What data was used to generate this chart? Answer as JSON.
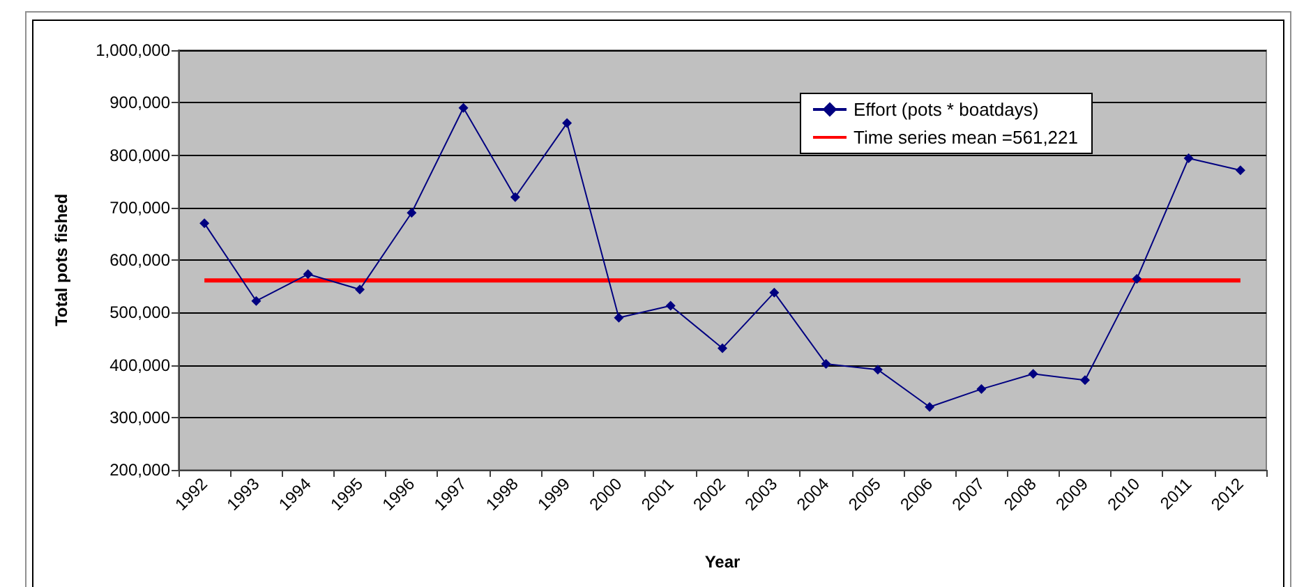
{
  "chart_data": {
    "type": "line",
    "xlabel": "Year",
    "ylabel": "Total pots fished",
    "categories": [
      "1992",
      "1993",
      "1994",
      "1995",
      "1996",
      "1997",
      "1998",
      "1999",
      "2000",
      "2001",
      "2002",
      "2003",
      "2004",
      "2005",
      "2006",
      "2007",
      "2008",
      "2009",
      "2010",
      "2011",
      "2012"
    ],
    "series": [
      {
        "name": "Effort (pots * boatdays)",
        "color": "#000080",
        "values": [
          670000,
          522000,
          573000,
          544000,
          690000,
          890000,
          720000,
          861000,
          490000,
          513000,
          432000,
          538000,
          402000,
          391000,
          320000,
          354000,
          383000,
          371000,
          564000,
          794000,
          771000
        ]
      },
      {
        "name": "Time series mean =561,221",
        "color": "#ff0000",
        "marker": "none",
        "values": [
          561221,
          561221,
          561221,
          561221,
          561221,
          561221,
          561221,
          561221,
          561221,
          561221,
          561221,
          561221,
          561221,
          561221,
          561221,
          561221,
          561221,
          561221,
          561221,
          561221,
          561221
        ]
      }
    ],
    "ylim": [
      200000,
      1000000
    ],
    "yticks": [
      {
        "value": 200000,
        "label": "200,000"
      },
      {
        "value": 300000,
        "label": "300,000"
      },
      {
        "value": 400000,
        "label": "400,000"
      },
      {
        "value": 500000,
        "label": "500,000"
      },
      {
        "value": 600000,
        "label": "600,000"
      },
      {
        "value": 700000,
        "label": "700,000"
      },
      {
        "value": 800000,
        "label": "800,000"
      },
      {
        "value": 900000,
        "label": "900,000"
      },
      {
        "value": 1000000,
        "label": "1,000,000"
      }
    ],
    "grid": "y",
    "legend": "top right",
    "marker": "diamond"
  }
}
